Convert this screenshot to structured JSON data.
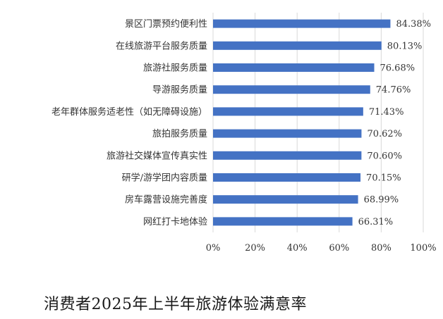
{
  "caption": "消费者2025年上半年旅游体验满意率",
  "chart_data": {
    "type": "bar",
    "orientation": "horizontal",
    "title": "",
    "xlabel": "",
    "ylabel": "",
    "xlim": [
      0,
      100
    ],
    "ticks": [
      0,
      20,
      40,
      60,
      80,
      100
    ],
    "tick_labels": [
      "0%",
      "20%",
      "40%",
      "60%",
      "80%",
      "100%"
    ],
    "grid": true,
    "bar_color": "#4472C4",
    "categories": [
      "景区门票预约便利性",
      "在线旅游平台服务质量",
      "旅游社服务质量",
      "导游服务质量",
      "老年群体服务适老性（如无障碍设施）",
      "旅拍服务质量",
      "旅游社交媒体宣传真实性",
      "研学/游学团内容质量",
      "房车露营设施完善度",
      "网红打卡地体验"
    ],
    "values": [
      84.38,
      80.13,
      76.68,
      74.76,
      71.43,
      70.62,
      70.6,
      70.15,
      68.99,
      66.31
    ],
    "value_labels": [
      "84.38%",
      "80.13%",
      "76.68%",
      "74.76%",
      "71.43%",
      "70.62%",
      "70.60%",
      "70.15%",
      "68.99%",
      "66.31%"
    ]
  }
}
